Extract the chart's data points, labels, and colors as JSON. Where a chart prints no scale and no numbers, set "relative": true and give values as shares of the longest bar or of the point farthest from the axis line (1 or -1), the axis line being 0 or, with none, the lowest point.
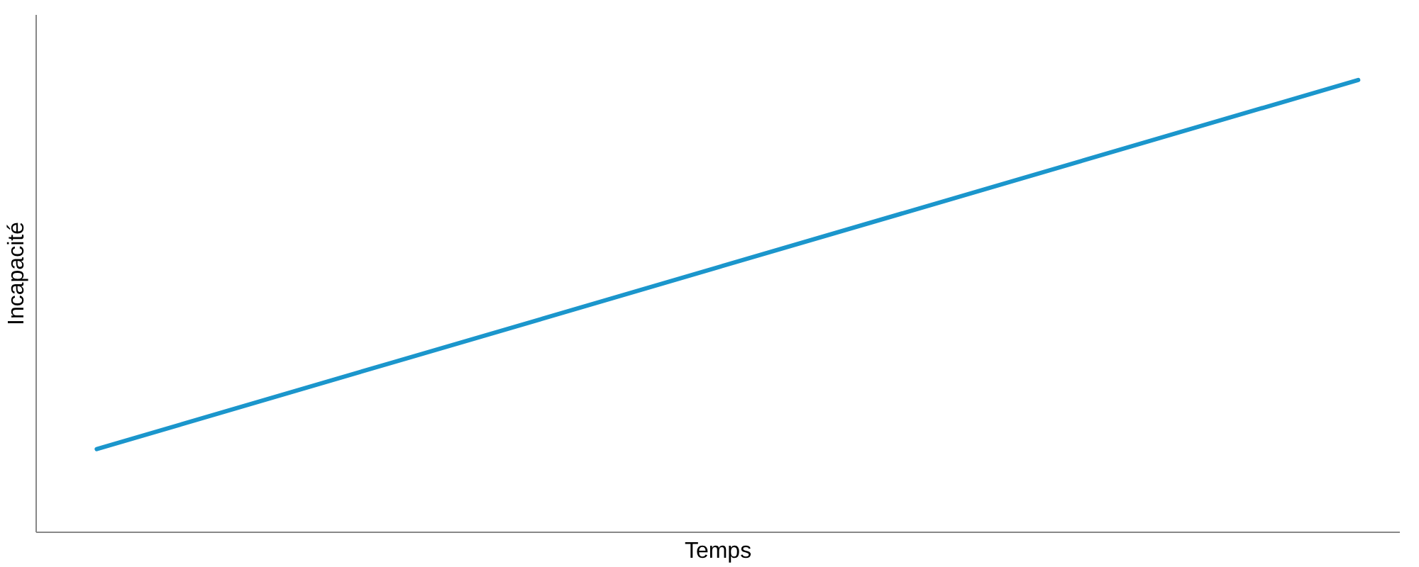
{
  "chart_data": {
    "type": "line",
    "xlabel": "Temps",
    "ylabel": "Incapacité",
    "categories": [
      null,
      null
    ],
    "relative": true,
    "series": [
      {
        "color": "#1b96cc",
        "values": [
          0.184,
          1
        ]
      }
    ],
    "marker": "none",
    "line_style": "solid"
  }
}
